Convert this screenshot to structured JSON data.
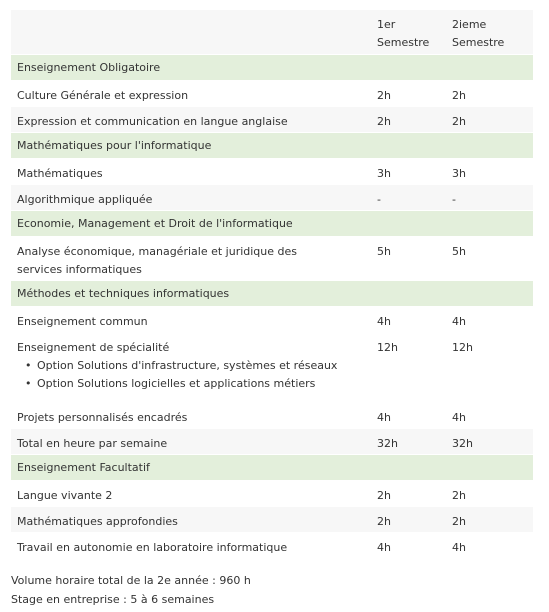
{
  "header": {
    "col1": "",
    "col2_line1": "1er",
    "col2_line2": "Semestre",
    "col3_line1": "2ieme",
    "col3_line2": "Semestre"
  },
  "sections": {
    "s1": "Enseignement Obligatoire",
    "s2": "Mathématiques pour l'informatique",
    "s3": "Economie, Management et Droit de l'informatique",
    "s4": "Méthodes et techniques informatiques",
    "s5": "Enseignement Facultatif"
  },
  "rows": {
    "culture": {
      "label": "Culture Générale et expression",
      "s1": "2h",
      "s2": "2h"
    },
    "anglais": {
      "label": "Expression et communication en langue anglaise",
      "s1": "2h",
      "s2": "2h"
    },
    "maths": {
      "label": "Mathématiques",
      "s1": "3h",
      "s2": "3h"
    },
    "algo": {
      "label": "Algorithmique appliquée",
      "s1": "-",
      "s2": "-"
    },
    "eco": {
      "label_line1": "Analyse économique, managériale et juridique des",
      "label_line2": "services informatiques",
      "s1": "5h",
      "s2": "5h"
    },
    "commun": {
      "label": "Enseignement commun",
      "s1": "4h",
      "s2": "4h"
    },
    "specialite": {
      "label": "Enseignement de spécialité",
      "options": [
        "Option Solutions d'infrastructure, systèmes et réseaux",
        "Option Solutions logicielles et applications métiers"
      ],
      "bullet": "•",
      "s1": "12h",
      "s2": "12h"
    },
    "projets": {
      "label": "Projets personnalisés encadrés",
      "s1": "4h",
      "s2": "4h"
    },
    "total": {
      "label": "Total en heure par semaine",
      "s1": "32h",
      "s2": "32h"
    },
    "langue": {
      "label": "Langue vivante 2",
      "s1": "2h",
      "s2": "2h"
    },
    "maths_app": {
      "label": "Mathématiques approfondies",
      "s1": "2h",
      "s2": "2h"
    },
    "autonomie": {
      "label": "Travail en autonomie en laboratoire informatique",
      "s1": "4h",
      "s2": "4h"
    }
  },
  "footer": {
    "line1": "Volume horaire total de la 2e année : 960 h",
    "line2": "Stage en entreprise : 5 à 6 semaines"
  },
  "colors": {
    "section_bg": "#e3efdb",
    "zebra_bg": "#f7f7f7",
    "text": "#333333"
  }
}
